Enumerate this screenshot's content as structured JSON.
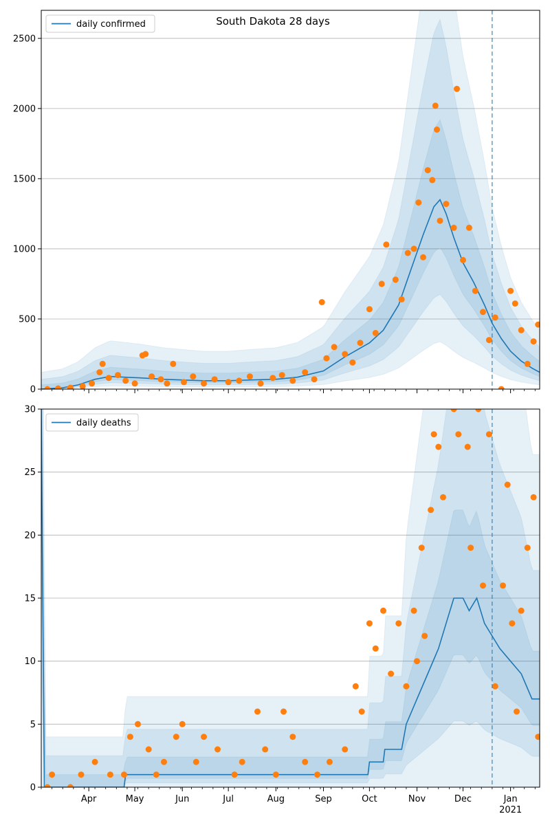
{
  "title": "South Dakota 28 days",
  "colors": {
    "line": "#1f77b4",
    "points": "#ff7f0e",
    "band": "#1f77b4",
    "grid": "#b0b0b0",
    "forecast_line": "#1f77b4"
  },
  "x_axis": {
    "month_labels": [
      "Apr",
      "May",
      "Jun",
      "Jul",
      "Aug",
      "Sep",
      "Oct",
      "Nov",
      "Dec",
      "Jan"
    ],
    "year_label": "2021",
    "start": "2020-03-01",
    "end": "2021-01-20",
    "forecast_start": "2020-12-20"
  },
  "chart_data": [
    {
      "type": "line",
      "legend": "daily confirmed",
      "ylim": [
        0,
        2700
      ],
      "yticks": [
        0,
        500,
        1000,
        1500,
        2000,
        2500
      ],
      "grid": "horizontal",
      "legend_position": "top-left",
      "bands": "shaded prediction intervals around the line",
      "series": [
        {
          "name": "daily confirmed",
          "kind": "model line",
          "points": [
            [
              "2020-03-01",
              0
            ],
            [
              "2020-03-15",
              10
            ],
            [
              "2020-03-25",
              30
            ],
            [
              "2020-04-05",
              70
            ],
            [
              "2020-04-15",
              90
            ],
            [
              "2020-04-25",
              85
            ],
            [
              "2020-05-05",
              80
            ],
            [
              "2020-05-20",
              70
            ],
            [
              "2020-06-01",
              65
            ],
            [
              "2020-06-15",
              60
            ],
            [
              "2020-07-01",
              60
            ],
            [
              "2020-07-15",
              65
            ],
            [
              "2020-08-01",
              70
            ],
            [
              "2020-08-15",
              85
            ],
            [
              "2020-09-01",
              130
            ],
            [
              "2020-09-15",
              230
            ],
            [
              "2020-10-01",
              330
            ],
            [
              "2020-10-10",
              420
            ],
            [
              "2020-10-20",
              600
            ],
            [
              "2020-10-28",
              850
            ],
            [
              "2020-11-05",
              1100
            ],
            [
              "2020-11-12",
              1300
            ],
            [
              "2020-11-16",
              1350
            ],
            [
              "2020-11-20",
              1250
            ],
            [
              "2020-11-25",
              1080
            ],
            [
              "2020-12-01",
              900
            ],
            [
              "2020-12-08",
              760
            ],
            [
              "2020-12-15",
              600
            ],
            [
              "2020-12-20",
              470
            ],
            [
              "2020-12-26",
              360
            ],
            [
              "2021-01-01",
              270
            ],
            [
              "2021-01-08",
              200
            ],
            [
              "2021-01-15",
              150
            ],
            [
              "2021-01-20",
              120
            ]
          ]
        },
        {
          "name": "daily confirmed observations",
          "kind": "observed points",
          "points": [
            [
              "2020-03-05",
              0
            ],
            [
              "2020-03-12",
              5
            ],
            [
              "2020-03-20",
              10
            ],
            [
              "2020-03-28",
              20
            ],
            [
              "2020-04-03",
              40
            ],
            [
              "2020-04-08",
              120
            ],
            [
              "2020-04-10",
              180
            ],
            [
              "2020-04-14",
              80
            ],
            [
              "2020-04-20",
              100
            ],
            [
              "2020-04-25",
              60
            ],
            [
              "2020-05-01",
              40
            ],
            [
              "2020-05-06",
              240
            ],
            [
              "2020-05-08",
              250
            ],
            [
              "2020-05-12",
              90
            ],
            [
              "2020-05-18",
              70
            ],
            [
              "2020-05-22",
              40
            ],
            [
              "2020-05-26",
              180
            ],
            [
              "2020-06-02",
              50
            ],
            [
              "2020-06-08",
              90
            ],
            [
              "2020-06-15",
              40
            ],
            [
              "2020-06-22",
              70
            ],
            [
              "2020-07-01",
              50
            ],
            [
              "2020-07-08",
              60
            ],
            [
              "2020-07-15",
              90
            ],
            [
              "2020-07-22",
              40
            ],
            [
              "2020-07-30",
              80
            ],
            [
              "2020-08-05",
              100
            ],
            [
              "2020-08-12",
              60
            ],
            [
              "2020-08-20",
              120
            ],
            [
              "2020-08-26",
              70
            ],
            [
              "2020-08-31",
              620
            ],
            [
              "2020-09-03",
              220
            ],
            [
              "2020-09-08",
              300
            ],
            [
              "2020-09-15",
              250
            ],
            [
              "2020-09-20",
              190
            ],
            [
              "2020-09-25",
              330
            ],
            [
              "2020-10-01",
              570
            ],
            [
              "2020-10-05",
              400
            ],
            [
              "2020-10-09",
              750
            ],
            [
              "2020-10-12",
              1030
            ],
            [
              "2020-10-18",
              780
            ],
            [
              "2020-10-22",
              640
            ],
            [
              "2020-10-26",
              970
            ],
            [
              "2020-10-30",
              1000
            ],
            [
              "2020-11-02",
              1330
            ],
            [
              "2020-11-05",
              940
            ],
            [
              "2020-11-08",
              1560
            ],
            [
              "2020-11-11",
              1490
            ],
            [
              "2020-11-13",
              2020
            ],
            [
              "2020-11-14",
              1850
            ],
            [
              "2020-11-16",
              1200
            ],
            [
              "2020-11-20",
              1320
            ],
            [
              "2020-11-25",
              1150
            ],
            [
              "2020-11-27",
              2140
            ],
            [
              "2020-12-01",
              920
            ],
            [
              "2020-12-05",
              1150
            ],
            [
              "2020-12-09",
              700
            ],
            [
              "2020-12-14",
              550
            ],
            [
              "2020-12-18",
              350
            ],
            [
              "2020-12-22",
              510
            ],
            [
              "2020-12-26",
              0
            ],
            [
              "2021-01-01",
              700
            ],
            [
              "2021-01-04",
              610
            ],
            [
              "2021-01-08",
              420
            ],
            [
              "2021-01-12",
              180
            ],
            [
              "2021-01-16",
              340
            ],
            [
              "2021-01-19",
              460
            ]
          ]
        }
      ]
    },
    {
      "type": "line",
      "legend": "daily deaths",
      "ylim": [
        0,
        30
      ],
      "yticks": [
        0,
        5,
        10,
        15,
        20,
        25,
        30
      ],
      "grid": "horizontal",
      "legend_position": "top-left",
      "bands": "shaded prediction intervals around the line",
      "series": [
        {
          "name": "daily deaths",
          "kind": "model line",
          "points": [
            [
              "2020-03-01",
              30
            ],
            [
              "2020-03-03",
              0
            ],
            [
              "2020-04-24",
              0
            ],
            [
              "2020-04-25",
              1
            ],
            [
              "2020-09-30",
              1
            ],
            [
              "2020-10-01",
              2
            ],
            [
              "2020-10-10",
              2
            ],
            [
              "2020-10-11",
              3
            ],
            [
              "2020-10-22",
              3
            ],
            [
              "2020-10-25",
              5
            ],
            [
              "2020-11-01",
              7
            ],
            [
              "2020-11-08",
              9
            ],
            [
              "2020-11-15",
              11
            ],
            [
              "2020-11-20",
              13
            ],
            [
              "2020-11-25",
              15
            ],
            [
              "2020-12-01",
              15
            ],
            [
              "2020-12-05",
              14
            ],
            [
              "2020-12-10",
              15
            ],
            [
              "2020-12-15",
              13
            ],
            [
              "2020-12-20",
              12
            ],
            [
              "2020-12-25",
              11
            ],
            [
              "2021-01-01",
              10
            ],
            [
              "2021-01-08",
              9
            ],
            [
              "2021-01-15",
              7
            ],
            [
              "2021-01-20",
              7
            ]
          ]
        },
        {
          "name": "daily deaths observations",
          "kind": "observed points",
          "points": [
            [
              "2020-03-05",
              0
            ],
            [
              "2020-03-08",
              1
            ],
            [
              "2020-03-20",
              0
            ],
            [
              "2020-03-27",
              1
            ],
            [
              "2020-04-05",
              2
            ],
            [
              "2020-04-15",
              1
            ],
            [
              "2020-04-24",
              1
            ],
            [
              "2020-04-28",
              4
            ],
            [
              "2020-05-03",
              5
            ],
            [
              "2020-05-10",
              3
            ],
            [
              "2020-05-15",
              1
            ],
            [
              "2020-05-20",
              2
            ],
            [
              "2020-05-28",
              4
            ],
            [
              "2020-06-01",
              5
            ],
            [
              "2020-06-10",
              2
            ],
            [
              "2020-06-15",
              4
            ],
            [
              "2020-06-24",
              3
            ],
            [
              "2020-07-05",
              1
            ],
            [
              "2020-07-10",
              2
            ],
            [
              "2020-07-20",
              6
            ],
            [
              "2020-07-25",
              3
            ],
            [
              "2020-08-01",
              1
            ],
            [
              "2020-08-06",
              6
            ],
            [
              "2020-08-12",
              4
            ],
            [
              "2020-08-20",
              2
            ],
            [
              "2020-08-28",
              1
            ],
            [
              "2020-09-05",
              2
            ],
            [
              "2020-09-15",
              3
            ],
            [
              "2020-09-22",
              8
            ],
            [
              "2020-09-26",
              6
            ],
            [
              "2020-10-01",
              13
            ],
            [
              "2020-10-05",
              11
            ],
            [
              "2020-10-10",
              14
            ],
            [
              "2020-10-15",
              9
            ],
            [
              "2020-10-20",
              13
            ],
            [
              "2020-10-25",
              8
            ],
            [
              "2020-10-30",
              14
            ],
            [
              "2020-11-01",
              10
            ],
            [
              "2020-11-04",
              19
            ],
            [
              "2020-11-06",
              12
            ],
            [
              "2020-11-10",
              22
            ],
            [
              "2020-11-12",
              28
            ],
            [
              "2020-11-15",
              27
            ],
            [
              "2020-11-18",
              23
            ],
            [
              "2020-11-25",
              30
            ],
            [
              "2020-11-28",
              28
            ],
            [
              "2020-12-04",
              27
            ],
            [
              "2020-12-06",
              19
            ],
            [
              "2020-12-11",
              30
            ],
            [
              "2020-12-14",
              16
            ],
            [
              "2020-12-18",
              28
            ],
            [
              "2020-12-22",
              8
            ],
            [
              "2020-12-27",
              16
            ],
            [
              "2020-12-30",
              24
            ],
            [
              "2021-01-02",
              13
            ],
            [
              "2021-01-05",
              6
            ],
            [
              "2021-01-08",
              14
            ],
            [
              "2021-01-12",
              19
            ],
            [
              "2021-01-16",
              23
            ],
            [
              "2021-01-19",
              4
            ]
          ]
        }
      ]
    }
  ]
}
